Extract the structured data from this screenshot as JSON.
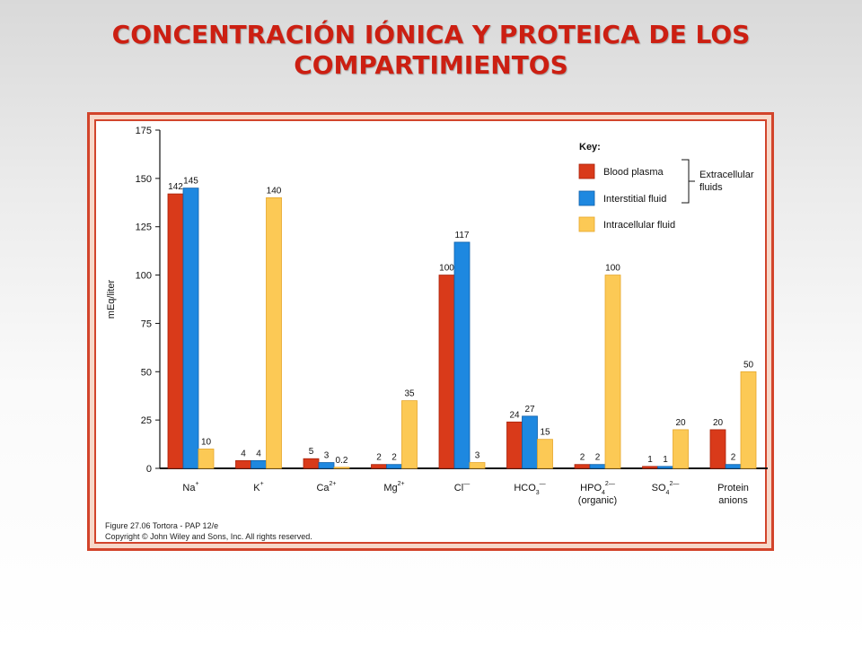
{
  "slide": {
    "title_line1": "CONCENTRACIÓN IÓNICA Y PROTEICA DE LOS",
    "title_line2": "COMPARTIMIENTOS"
  },
  "caption": {
    "line1": "Figure 27.06  Tortora - PAP 12/e",
    "line2": "Copyright © John Wiley and Sons, Inc. All rights reserved."
  },
  "colors": {
    "frame": "#d2442b",
    "title": "#cc1f12",
    "blood_plasma": "#d93a1a",
    "interstitial_fluid": "#1e88e0",
    "intracellular_fluid": "#fcc955"
  },
  "chart_data": {
    "type": "bar",
    "title": "",
    "xlabel": "",
    "ylabel": "mEq/liter",
    "ylim": [
      0,
      175
    ],
    "yticks": [
      0,
      25,
      50,
      75,
      100,
      125,
      150,
      175
    ],
    "grid": false,
    "legend_position": "top-right",
    "legend_title": "Key:",
    "legend_group_label": [
      "Extracellular",
      "fluids"
    ],
    "categories": [
      {
        "base": "Na",
        "sup": "+",
        "sub": "",
        "second_line": ""
      },
      {
        "base": "K",
        "sup": "+",
        "sub": "",
        "second_line": ""
      },
      {
        "base": "Ca",
        "sup": "2+",
        "sub": "",
        "second_line": ""
      },
      {
        "base": "Mg",
        "sup": "2+",
        "sub": "",
        "second_line": ""
      },
      {
        "base": "Cl",
        "sup": "—",
        "sub": "",
        "second_line": ""
      },
      {
        "base": "HCO",
        "sup": "—",
        "sub": "3",
        "second_line": ""
      },
      {
        "base": "HPO",
        "sup": "2—",
        "sub": "4",
        "second_line": "(organic)"
      },
      {
        "base": "SO",
        "sup": "2—",
        "sub": "4",
        "second_line": ""
      },
      {
        "base": "Protein",
        "sup": "",
        "sub": "",
        "second_line": "anions"
      }
    ],
    "series": [
      {
        "name": "Blood plasma",
        "values": [
          142,
          4,
          5,
          2,
          100,
          24,
          2,
          1,
          20
        ],
        "labels": [
          "142",
          "4",
          "5",
          "2",
          "100",
          "24",
          "2",
          "1",
          "20"
        ]
      },
      {
        "name": "Interstitial fluid",
        "values": [
          145,
          4,
          3,
          2,
          117,
          27,
          2,
          1,
          2
        ],
        "labels": [
          "145",
          "4",
          "3",
          "2",
          "117",
          "27",
          "2",
          "1",
          "2"
        ]
      },
      {
        "name": "Intracellular fluid",
        "values": [
          10,
          140,
          0.2,
          35,
          3,
          15,
          100,
          20,
          50
        ],
        "labels": [
          "10",
          "140",
          "0.2",
          "35",
          "3",
          "15",
          "100",
          "20",
          "50"
        ]
      }
    ]
  }
}
